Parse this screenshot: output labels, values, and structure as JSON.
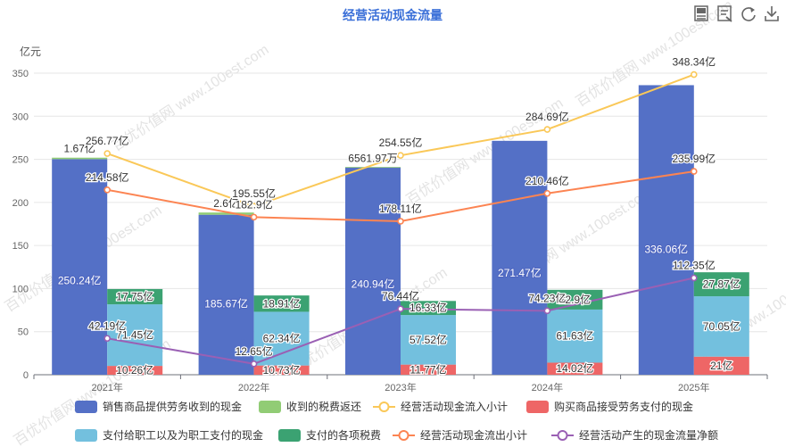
{
  "toolbar": {
    "icons": [
      "data-view-icon",
      "table-view-icon",
      "restore-icon",
      "download-icon"
    ]
  },
  "watermark": "百优价值网 www.100est.com",
  "chart_data": {
    "type": "bar",
    "title": "经营活动现金流量",
    "yunit": "亿元",
    "ylim": [
      0,
      350
    ],
    "yticks": [
      0,
      50,
      100,
      150,
      200,
      250,
      300,
      350
    ],
    "categories": [
      "2021年",
      "2022年",
      "2023年",
      "2024年",
      "2025年"
    ],
    "grid": true,
    "legend_position": "bottom",
    "stacks": [
      {
        "stack": "inflow",
        "series": [
          {
            "name": "销售商品提供劳务收到的现金",
            "color": "#5470c6",
            "values": [
              250.24,
              185.67,
              240.94,
              271.47,
              336.06
            ],
            "labels": [
              "250.24亿",
              "185.67亿",
              "240.94亿",
              "271.47亿",
              "336.06亿"
            ]
          },
          {
            "name": "收到的税费返还",
            "color": "#91cc75",
            "values": [
              1.67,
              2.6,
              0.0656197,
              0,
              0
            ],
            "labels": [
              "1.67亿",
              "2.6亿",
              "6561.97万",
              "",
              ""
            ]
          }
        ]
      },
      {
        "stack": "outflow",
        "series": [
          {
            "name": "购买商品接受劳务支付的现金",
            "color": "#ee6666",
            "values": [
              10.26,
              10.73,
              11.77,
              14.02,
              21
            ],
            "labels": [
              "10.26亿",
              "10.73亿",
              "11.77亿",
              "14.02亿",
              "21亿"
            ]
          },
          {
            "name": "支付给职工以及为职工支付的现金",
            "color": "#73c0de",
            "values": [
              71.45,
              62.34,
              57.52,
              61.63,
              70.05
            ],
            "labels": [
              "71.45亿",
              "62.34亿",
              "57.52亿",
              "61.63亿",
              "70.05亿"
            ]
          },
          {
            "name": "支付的各项税费",
            "color": "#3ba272",
            "values": [
              17.75,
              18.91,
              16.33,
              22.9,
              27.87
            ],
            "labels": [
              "17.75亿",
              "18.91亿",
              "16.33亿",
              "22.9亿",
              "27.87亿"
            ]
          }
        ]
      }
    ],
    "lines": [
      {
        "name": "经营活动现金流入小计",
        "color": "#fac858",
        "values": [
          256.77,
          195.55,
          254.55,
          284.69,
          348.34
        ],
        "labels": [
          "256.77亿",
          "195.55亿",
          "254.55亿",
          "284.69亿",
          "348.34亿"
        ]
      },
      {
        "name": "经营活动现金流出小计",
        "color": "#fc8452",
        "values": [
          214.58,
          182.9,
          178.11,
          210.46,
          235.99
        ],
        "labels": [
          "214.58亿",
          "182.9亿",
          "178.11亿",
          "210.46亿",
          "235.99亿"
        ]
      },
      {
        "name": "经营活动产生的现金流量净额",
        "color": "#9a60b4",
        "values": [
          42.19,
          12.65,
          76.44,
          74.23,
          112.35
        ],
        "labels": [
          "42.19亿",
          "12.65亿",
          "76.44亿",
          "74.23亿",
          "112.35亿"
        ]
      }
    ],
    "legend": [
      {
        "name": "销售商品提供劳务收到的现金",
        "kind": "bar",
        "color": "#5470c6"
      },
      {
        "name": "收到的税费返还",
        "kind": "bar",
        "color": "#91cc75"
      },
      {
        "name": "经营活动现金流入小计",
        "kind": "line",
        "color": "#fac858"
      },
      {
        "name": "购买商品接受劳务支付的现金",
        "kind": "bar",
        "color": "#ee6666"
      },
      {
        "name": "支付给职工以及为职工支付的现金",
        "kind": "bar",
        "color": "#73c0de"
      },
      {
        "name": "支付的各项税费",
        "kind": "bar",
        "color": "#3ba272"
      },
      {
        "name": "经营活动现金流出小计",
        "kind": "line",
        "color": "#fc8452"
      },
      {
        "name": "经营活动产生的现金流量净额",
        "kind": "line",
        "color": "#9a60b4"
      }
    ]
  }
}
